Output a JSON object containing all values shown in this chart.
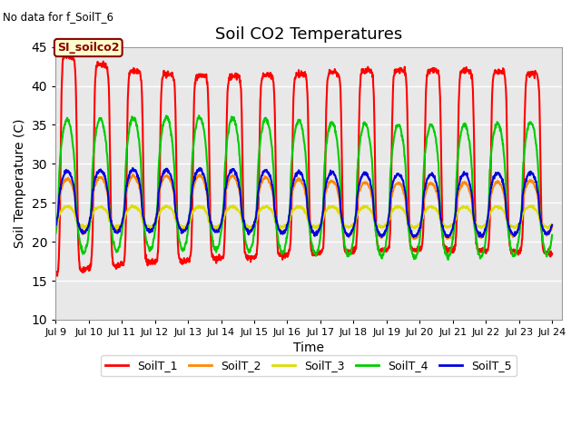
{
  "title": "Soil CO2 Temperatures",
  "no_data_text": "No data for f_SoilT_6",
  "si_label": "SI_soilco2",
  "xlabel": "Time",
  "ylabel": "Soil Temperature (C)",
  "ylim": [
    10,
    45
  ],
  "yticks": [
    10,
    15,
    20,
    25,
    30,
    35,
    40,
    45
  ],
  "xlim_start": 9.0,
  "xlim_end": 24.3,
  "bg_color": "#e8e8e8",
  "fig_color": "#ffffff",
  "series_colors": [
    "#ff0000",
    "#ff8800",
    "#dddd00",
    "#00cc00",
    "#0000dd"
  ],
  "series_names": [
    "SoilT_1",
    "SoilT_2",
    "SoilT_3",
    "SoilT_4",
    "SoilT_5"
  ],
  "line_width": 1.5,
  "title_fontsize": 13,
  "axis_fontsize": 10,
  "tick_fontsize": 8,
  "legend_fontsize": 9
}
